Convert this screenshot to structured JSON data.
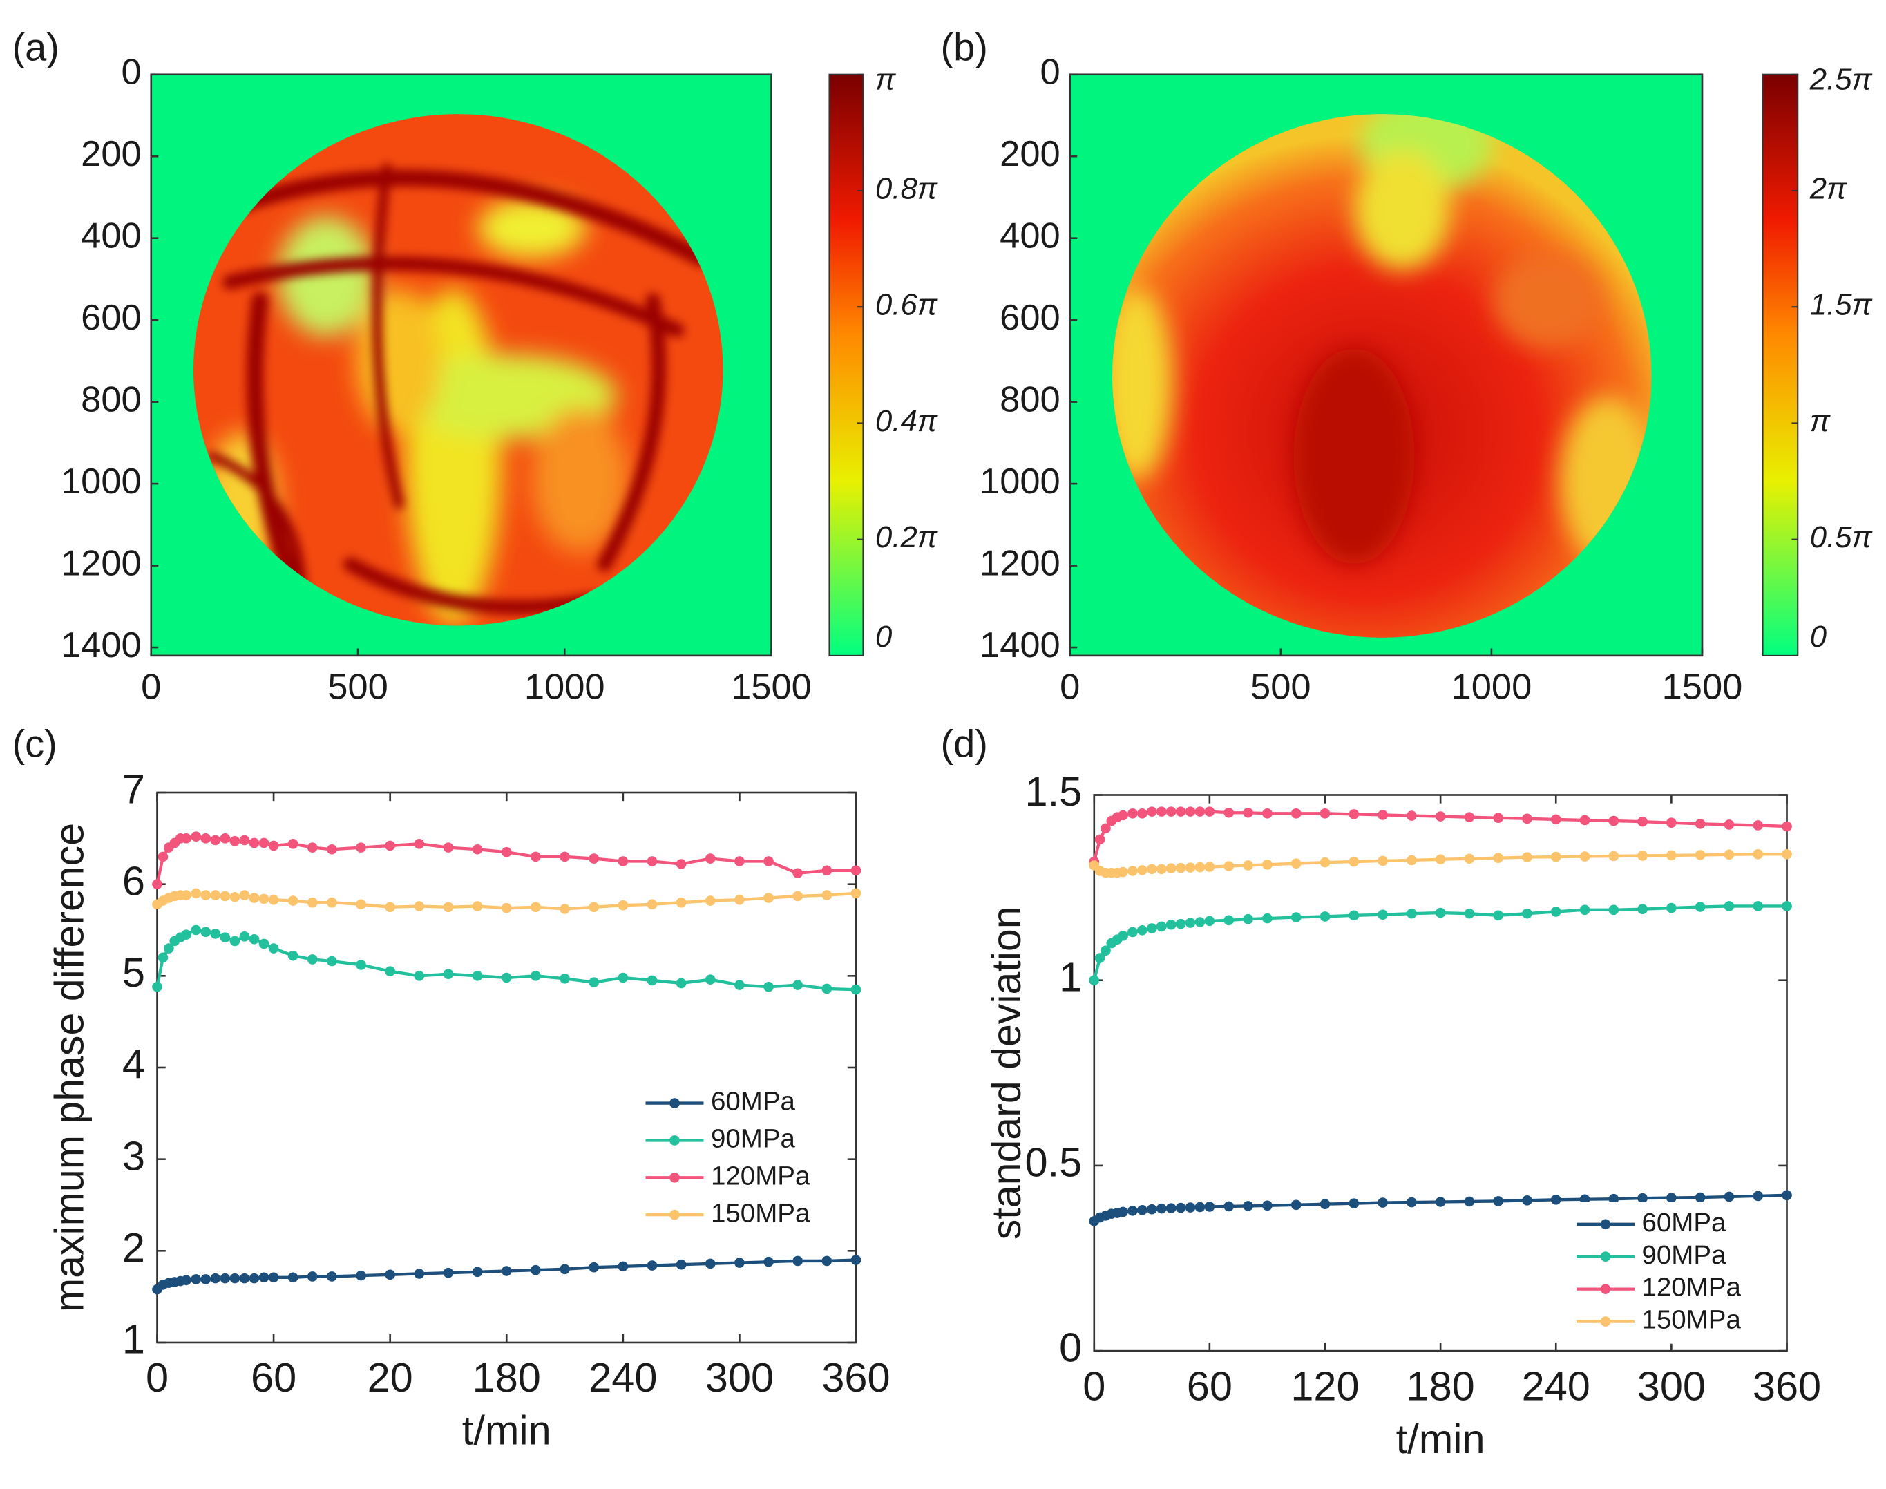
{
  "chart_data": [
    {
      "type": "heatmap",
      "panel": "(a)",
      "xlim": [
        0,
        1500
      ],
      "xticks": [
        0,
        500,
        1000,
        1500
      ],
      "ylim": [
        0,
        1420
      ],
      "yticks": [
        0,
        200,
        400,
        600,
        800,
        1000,
        1200,
        1400
      ],
      "clim": [
        0,
        1
      ],
      "cticks": [
        {
          "value": 0,
          "label": "0"
        },
        {
          "value": 0.2,
          "label": "0.2π"
        },
        {
          "value": 0.4,
          "label": "0.4π"
        },
        {
          "value": 0.6,
          "label": "0.6π"
        },
        {
          "value": 0.8,
          "label": "0.8π"
        },
        {
          "value": 1,
          "label": "π"
        }
      ]
    },
    {
      "type": "heatmap",
      "panel": "(b)",
      "xlim": [
        0,
        1500
      ],
      "xticks": [
        0,
        500,
        1000,
        1500
      ],
      "ylim": [
        0,
        1420
      ],
      "yticks": [
        0,
        200,
        400,
        600,
        800,
        1000,
        1200,
        1400
      ],
      "clim": [
        0,
        2.5
      ],
      "cticks": [
        {
          "value": 0,
          "label": "0"
        },
        {
          "value": 0.5,
          "label": "0.5π"
        },
        {
          "value": 1,
          "label": "π"
        },
        {
          "value": 1.5,
          "label": "1.5π"
        },
        {
          "value": 2,
          "label": "2π"
        },
        {
          "value": 2.5,
          "label": "2.5π"
        }
      ]
    },
    {
      "type": "line",
      "panel": "(c)",
      "x_label": "t/min",
      "y_label": "maximum phase difference",
      "xlim": [
        0,
        360
      ],
      "xticks": [
        0,
        60,
        {
          "value": 120,
          "label": "20"
        },
        180,
        240,
        300,
        360
      ],
      "ylim": [
        1,
        7
      ],
      "yticks": [
        1,
        2,
        3,
        4,
        5,
        6,
        7
      ],
      "legend": "center right",
      "x": [
        0,
        3,
        6,
        9,
        12,
        15,
        20,
        25,
        30,
        35,
        40,
        45,
        50,
        55,
        60,
        70,
        80,
        90,
        105,
        120,
        135,
        150,
        165,
        180,
        195,
        210,
        225,
        240,
        255,
        270,
        285,
        300,
        315,
        330,
        345,
        360
      ],
      "series": [
        {
          "name": "60MPa",
          "color": "#1c4f7c",
          "values": [
            1.58,
            1.63,
            1.65,
            1.66,
            1.67,
            1.68,
            1.69,
            1.69,
            1.7,
            1.7,
            1.7,
            1.7,
            1.7,
            1.71,
            1.71,
            1.71,
            1.72,
            1.72,
            1.73,
            1.74,
            1.75,
            1.76,
            1.77,
            1.78,
            1.79,
            1.8,
            1.82,
            1.83,
            1.84,
            1.85,
            1.86,
            1.87,
            1.88,
            1.89,
            1.89,
            1.9
          ]
        },
        {
          "name": "90MPa",
          "color": "#22c09c",
          "values": [
            4.88,
            5.2,
            5.3,
            5.38,
            5.42,
            5.45,
            5.5,
            5.48,
            5.46,
            5.42,
            5.38,
            5.43,
            5.4,
            5.35,
            5.3,
            5.22,
            5.18,
            5.16,
            5.12,
            5.05,
            5.0,
            5.02,
            5.0,
            4.98,
            5.0,
            4.97,
            4.93,
            4.98,
            4.95,
            4.92,
            4.96,
            4.9,
            4.88,
            4.9,
            4.86,
            4.85
          ]
        },
        {
          "name": "120MPa",
          "color": "#f2547c",
          "values": [
            6.0,
            6.3,
            6.4,
            6.45,
            6.5,
            6.5,
            6.52,
            6.5,
            6.48,
            6.5,
            6.47,
            6.48,
            6.45,
            6.45,
            6.42,
            6.44,
            6.4,
            6.38,
            6.4,
            6.42,
            6.44,
            6.4,
            6.38,
            6.35,
            6.3,
            6.3,
            6.28,
            6.25,
            6.25,
            6.22,
            6.28,
            6.25,
            6.25,
            6.12,
            6.15,
            6.15
          ]
        },
        {
          "name": "150MPa",
          "color": "#fbc46c",
          "values": [
            5.78,
            5.82,
            5.85,
            5.87,
            5.88,
            5.88,
            5.9,
            5.88,
            5.88,
            5.87,
            5.86,
            5.88,
            5.85,
            5.84,
            5.83,
            5.82,
            5.8,
            5.8,
            5.78,
            5.75,
            5.76,
            5.75,
            5.76,
            5.74,
            5.75,
            5.73,
            5.75,
            5.77,
            5.78,
            5.8,
            5.82,
            5.83,
            5.85,
            5.87,
            5.88,
            5.9
          ]
        }
      ]
    },
    {
      "type": "line",
      "panel": "(d)",
      "x_label": "t/min",
      "y_label": "standard deviation",
      "xlim": [
        0,
        360
      ],
      "xticks": [
        0,
        60,
        120,
        180,
        240,
        300,
        360
      ],
      "ylim": [
        0,
        1.5
      ],
      "yticks": [
        0,
        0.5,
        1,
        1.5
      ],
      "legend": "lower right",
      "x": [
        0,
        3,
        6,
        9,
        12,
        15,
        20,
        25,
        30,
        35,
        40,
        45,
        50,
        55,
        60,
        70,
        80,
        90,
        105,
        120,
        135,
        150,
        165,
        180,
        195,
        210,
        225,
        240,
        255,
        270,
        285,
        300,
        315,
        330,
        345,
        360
      ],
      "series": [
        {
          "name": "60MPa",
          "color": "#1c4f7c",
          "values": [
            0.35,
            0.36,
            0.365,
            0.37,
            0.372,
            0.375,
            0.378,
            0.38,
            0.382,
            0.384,
            0.385,
            0.386,
            0.387,
            0.388,
            0.389,
            0.39,
            0.391,
            0.392,
            0.394,
            0.396,
            0.398,
            0.4,
            0.401,
            0.402,
            0.403,
            0.404,
            0.406,
            0.408,
            0.409,
            0.41,
            0.412,
            0.413,
            0.414,
            0.416,
            0.418,
            0.42
          ]
        },
        {
          "name": "90MPa",
          "color": "#22c09c",
          "values": [
            1.0,
            1.06,
            1.08,
            1.1,
            1.11,
            1.12,
            1.13,
            1.135,
            1.14,
            1.145,
            1.15,
            1.152,
            1.155,
            1.157,
            1.16,
            1.162,
            1.165,
            1.167,
            1.17,
            1.172,
            1.175,
            1.177,
            1.18,
            1.182,
            1.18,
            1.175,
            1.18,
            1.185,
            1.19,
            1.19,
            1.192,
            1.195,
            1.198,
            1.2,
            1.2,
            1.2
          ]
        },
        {
          "name": "120MPa",
          "color": "#f2547c",
          "values": [
            1.32,
            1.38,
            1.41,
            1.43,
            1.44,
            1.445,
            1.45,
            1.45,
            1.455,
            1.455,
            1.455,
            1.455,
            1.455,
            1.455,
            1.455,
            1.452,
            1.452,
            1.45,
            1.45,
            1.45,
            1.448,
            1.446,
            1.444,
            1.442,
            1.44,
            1.438,
            1.436,
            1.434,
            1.432,
            1.43,
            1.428,
            1.425,
            1.422,
            1.42,
            1.418,
            1.415
          ]
        },
        {
          "name": "150MPa",
          "color": "#fbc46c",
          "values": [
            1.31,
            1.295,
            1.29,
            1.29,
            1.29,
            1.292,
            1.295,
            1.297,
            1.3,
            1.3,
            1.302,
            1.303,
            1.304,
            1.305,
            1.306,
            1.308,
            1.31,
            1.312,
            1.315,
            1.318,
            1.32,
            1.322,
            1.324,
            1.326,
            1.328,
            1.33,
            1.332,
            1.333,
            1.334,
            1.335,
            1.336,
            1.337,
            1.338,
            1.339,
            1.34,
            1.34
          ]
        }
      ]
    }
  ]
}
